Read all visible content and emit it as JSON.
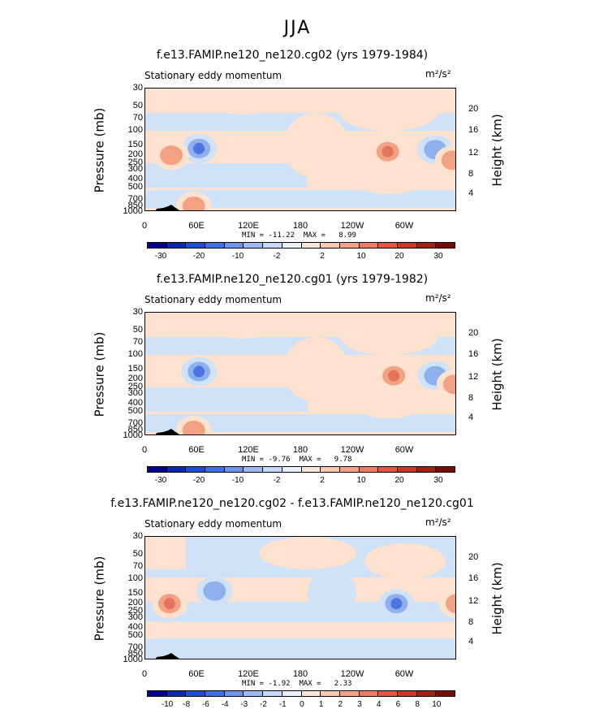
{
  "title": "JJA",
  "colors": {
    "neg_light": "#cfe2f7",
    "pos_light": "#fde2cf",
    "neg_mid": "#8fb0ee",
    "pos_mid": "#f2a283",
    "neg_strong": "#4b76e0",
    "pos_strong": "#e4745c"
  },
  "chart_data": [
    {
      "type": "heatmap",
      "title": "f.e13.FAMIP.ne120_ne120.cg02 (yrs 1979-1984)",
      "subtitle_left": "Stationary eddy momentum",
      "units": "m²/s²",
      "ylabel": "Pressure (mb)",
      "ylabel_right": "Height (km)",
      "y_ticks": [
        "30",
        "50",
        "70",
        "100",
        "150",
        "200",
        "250",
        "300",
        "400",
        "500",
        "700",
        "850",
        "1000"
      ],
      "height_ticks": [
        "20",
        "16",
        "12",
        "8",
        "4"
      ],
      "x_ticks": [
        "0",
        "60E",
        "120E",
        "180",
        "120W",
        "60W"
      ],
      "minmax": "MIN = -11.22  MAX =   8.99",
      "colorbar_labels": [
        "-30",
        "-20",
        "-10",
        "-2",
        "2",
        "10",
        "20",
        "30"
      ],
      "features": [
        {
          "lon": 62,
          "p": 165,
          "value": -11.2
        },
        {
          "lon": 30,
          "p": 200,
          "value": 6
        },
        {
          "lon": 56,
          "p": 850,
          "value": 7
        },
        {
          "lon": 280,
          "p": 180,
          "value": 9
        },
        {
          "lon": 335,
          "p": 170,
          "value": -5
        },
        {
          "lon": 355,
          "p": 230,
          "value": 4
        }
      ]
    },
    {
      "type": "heatmap",
      "title": "f.e13.FAMIP.ne120_ne120.cg01 (yrs 1979-1982)",
      "subtitle_left": "Stationary eddy momentum",
      "units": "m²/s²",
      "ylabel": "Pressure (mb)",
      "ylabel_right": "Height (km)",
      "y_ticks": [
        "30",
        "50",
        "70",
        "100",
        "150",
        "200",
        "250",
        "300",
        "400",
        "500",
        "700",
        "850",
        "1000"
      ],
      "height_ticks": [
        "20",
        "16",
        "12",
        "8",
        "4"
      ],
      "x_ticks": [
        "0",
        "60E",
        "120E",
        "180",
        "120W",
        "60W"
      ],
      "minmax": "MIN = -9.76  MAX =   9.78",
      "colorbar_labels": [
        "-30",
        "-20",
        "-10",
        "-2",
        "2",
        "10",
        "20",
        "30"
      ],
      "features": [
        {
          "lon": 62,
          "p": 160,
          "value": -9.8
        },
        {
          "lon": 56,
          "p": 850,
          "value": 6
        },
        {
          "lon": 287,
          "p": 180,
          "value": 9.8
        },
        {
          "lon": 335,
          "p": 180,
          "value": -6
        },
        {
          "lon": 357,
          "p": 230,
          "value": 5
        }
      ]
    },
    {
      "type": "heatmap",
      "title": "f.e13.FAMIP.ne120_ne120.cg02 - f.e13.FAMIP.ne120_ne120.cg01",
      "subtitle_left": "Stationary eddy momentum",
      "units": "m²/s²",
      "ylabel": "Pressure (mb)",
      "ylabel_right": "Height (km)",
      "y_ticks": [
        "30",
        "50",
        "70",
        "100",
        "150",
        "200",
        "250",
        "300",
        "400",
        "500",
        "700",
        "850",
        "1000"
      ],
      "height_ticks": [
        "20",
        "16",
        "12",
        "8",
        "4"
      ],
      "x_ticks": [
        "0",
        "60E",
        "120E",
        "180",
        "120W",
        "60W"
      ],
      "minmax": "MIN = -1.92  MAX =   2.33",
      "colorbar_labels": [
        "-10",
        "-8",
        "-6",
        "-4",
        "-3",
        "-2",
        "-1",
        "0",
        "1",
        "2",
        "3",
        "4",
        "6",
        "8",
        "10"
      ],
      "features": [
        {
          "lon": 28,
          "p": 200,
          "value": 2.3
        },
        {
          "lon": 80,
          "p": 140,
          "value": -1.5
        },
        {
          "lon": 290,
          "p": 200,
          "value": -1.9
        },
        {
          "lon": 360,
          "p": 200,
          "value": 1.2
        }
      ]
    }
  ]
}
